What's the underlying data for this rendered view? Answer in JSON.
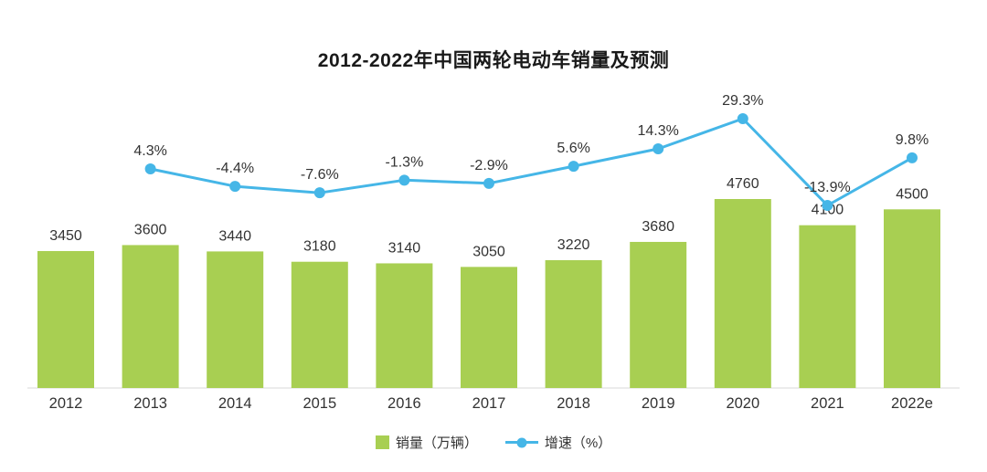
{
  "title": "2012-2022年中国两轮电动车销量及预测",
  "colors": {
    "bar": "#a8cf52",
    "line": "#45b6e7",
    "text": "#333333",
    "axis": "#d9d9d9",
    "title": "#1a1a1a"
  },
  "legend": {
    "sales_label": "销量（万辆）",
    "growth_label": "增速（%）"
  },
  "chart_data": {
    "type": "bar",
    "subtype": "combo-bar-line",
    "title": "2012-2022年中国两轮电动车销量及预测",
    "categories": [
      "2012",
      "2013",
      "2014",
      "2015",
      "2016",
      "2017",
      "2018",
      "2019",
      "2020",
      "2021",
      "2022e"
    ],
    "series": [
      {
        "name": "销量（万辆）",
        "type": "bar",
        "values": [
          3450,
          3600,
          3440,
          3180,
          3140,
          3050,
          3220,
          3680,
          4760,
          4100,
          4500
        ],
        "labels": [
          "3450",
          "3600",
          "3440",
          "3180",
          "3140",
          "3050",
          "3220",
          "3680",
          "4760",
          "4100",
          "4500"
        ]
      },
      {
        "name": "增速（%）",
        "type": "line",
        "values": [
          null,
          4.3,
          -4.4,
          -7.6,
          -1.3,
          -2.9,
          5.6,
          14.3,
          29.3,
          -13.9,
          9.8
        ],
        "labels": [
          "",
          "4.3%",
          "-4.4%",
          "-7.6%",
          "-1.3%",
          "-2.9%",
          "5.6%",
          "14.3%",
          "29.3%",
          "-13.9%",
          "9.8%"
        ]
      }
    ],
    "xlabel": "",
    "ylabel": "",
    "y_axis_visible": false,
    "grid": false,
    "legend_position": "bottom",
    "data_labels": true
  }
}
